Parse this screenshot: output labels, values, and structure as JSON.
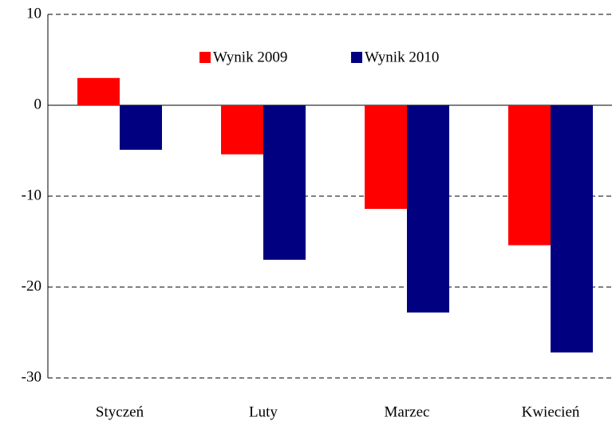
{
  "chart_data": {
    "type": "bar",
    "categories": [
      "Styczeń",
      "Luty",
      "Marzec",
      "Kwiecień"
    ],
    "series": [
      {
        "name": "Wynik 2009",
        "color": "#ff0000",
        "values": [
          3.0,
          -5.4,
          -11.4,
          -15.4
        ]
      },
      {
        "name": "Wynik 2010",
        "color": "#000080",
        "values": [
          -4.9,
          -17.0,
          -22.8,
          -27.2
        ]
      }
    ],
    "ylim": [
      -30,
      10
    ],
    "yticks": [
      -30,
      -20,
      -10,
      0,
      10
    ],
    "grid": true,
    "legend": "top"
  }
}
